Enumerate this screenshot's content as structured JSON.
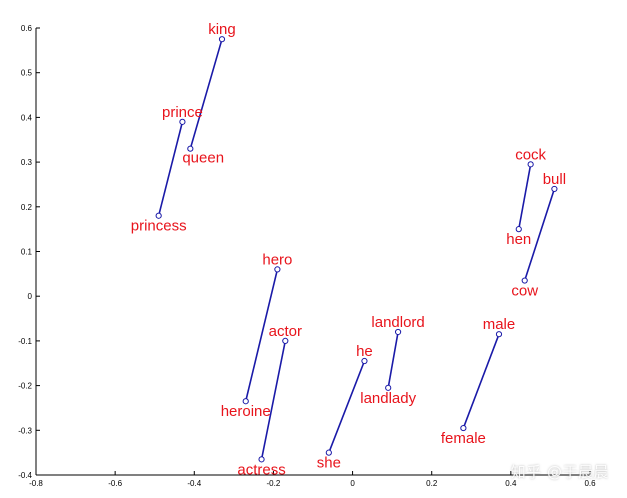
{
  "chart_data": {
    "type": "scatter",
    "xlim": [
      -0.8,
      0.6
    ],
    "ylim": [
      -0.4,
      0.6
    ],
    "xticks": [
      "-0.8",
      "-0.6",
      "-0.4",
      "-0.2",
      "0",
      "0.2",
      "0.4",
      "0.6"
    ],
    "yticks": [
      "-0.4",
      "-0.3",
      "-0.2",
      "-0.1",
      "0",
      "0.1",
      "0.2",
      "0.3",
      "0.4",
      "0.5",
      "0.6"
    ],
    "grid": false,
    "line_color": "#1a1aa8",
    "label_color": "#e8141c",
    "points": [
      {
        "word": "king",
        "x": -0.33,
        "y": 0.575,
        "label_anchor": "above"
      },
      {
        "word": "queen",
        "x": -0.41,
        "y": 0.33,
        "label_anchor": "below-right"
      },
      {
        "word": "prince",
        "x": -0.43,
        "y": 0.39,
        "label_anchor": "above"
      },
      {
        "word": "princess",
        "x": -0.49,
        "y": 0.18,
        "label_anchor": "below"
      },
      {
        "word": "hero",
        "x": -0.19,
        "y": 0.06,
        "label_anchor": "above"
      },
      {
        "word": "heroine",
        "x": -0.27,
        "y": -0.235,
        "label_anchor": "below"
      },
      {
        "word": "actor",
        "x": -0.17,
        "y": -0.1,
        "label_anchor": "above"
      },
      {
        "word": "actress",
        "x": -0.23,
        "y": -0.365,
        "label_anchor": "below"
      },
      {
        "word": "he",
        "x": 0.03,
        "y": -0.145,
        "label_anchor": "above"
      },
      {
        "word": "she",
        "x": -0.06,
        "y": -0.35,
        "label_anchor": "below"
      },
      {
        "word": "landlord",
        "x": 0.115,
        "y": -0.08,
        "label_anchor": "above"
      },
      {
        "word": "landlady",
        "x": 0.09,
        "y": -0.205,
        "label_anchor": "below"
      },
      {
        "word": "male",
        "x": 0.37,
        "y": -0.085,
        "label_anchor": "above"
      },
      {
        "word": "female",
        "x": 0.28,
        "y": -0.295,
        "label_anchor": "below"
      },
      {
        "word": "cock",
        "x": 0.45,
        "y": 0.295,
        "label_anchor": "above"
      },
      {
        "word": "hen",
        "x": 0.42,
        "y": 0.15,
        "label_anchor": "below"
      },
      {
        "word": "bull",
        "x": 0.51,
        "y": 0.24,
        "label_anchor": "above"
      },
      {
        "word": "cow",
        "x": 0.435,
        "y": 0.035,
        "label_anchor": "below"
      }
    ],
    "pairs": [
      [
        "king",
        "queen"
      ],
      [
        "prince",
        "princess"
      ],
      [
        "hero",
        "heroine"
      ],
      [
        "actor",
        "actress"
      ],
      [
        "he",
        "she"
      ],
      [
        "landlord",
        "landlady"
      ],
      [
        "male",
        "female"
      ],
      [
        "cock",
        "hen"
      ],
      [
        "bull",
        "cow"
      ]
    ]
  },
  "watermark": {
    "text": "知乎 @于晨晨"
  }
}
